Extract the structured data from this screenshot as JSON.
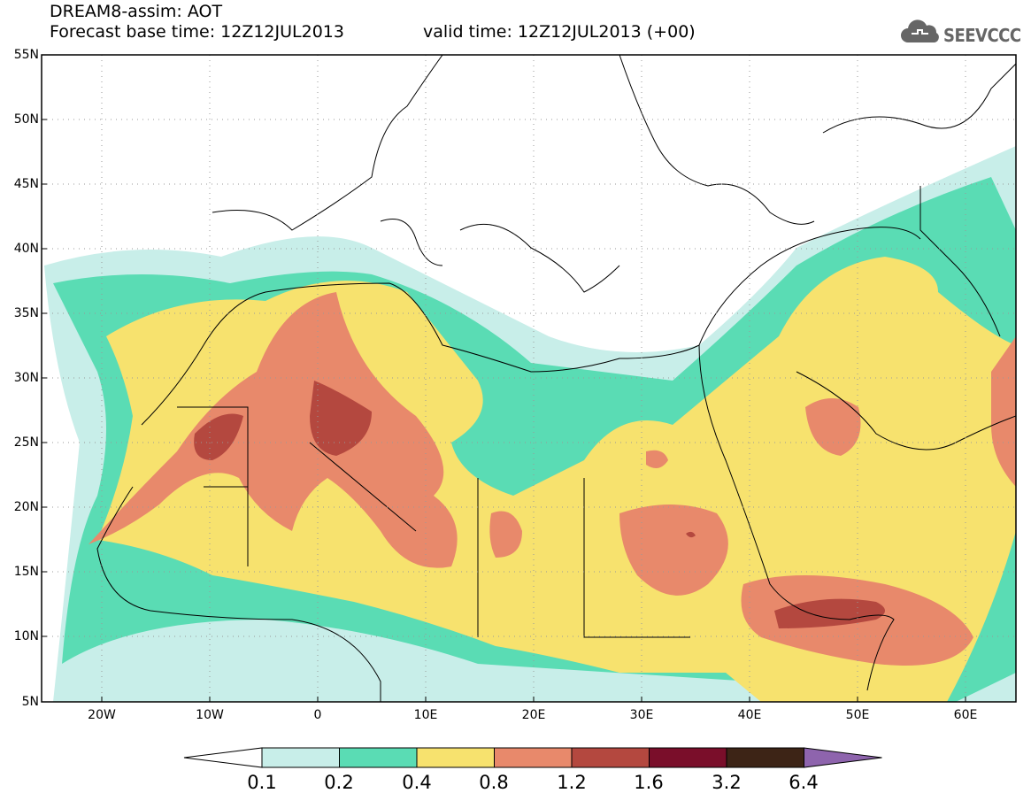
{
  "header": {
    "line1": "DREAM8-assim: AOT",
    "line2": "Forecast base time: 12Z12JUL2013",
    "valid": "valid time: 12Z12JUL2013 (+00)",
    "logo_text": "SEEVCCC"
  },
  "map": {
    "lat_labels": [
      "55N",
      "50N",
      "45N",
      "40N",
      "35N",
      "30N",
      "25N",
      "20N",
      "15N",
      "10N",
      "5N"
    ],
    "lon_labels": [
      "20W",
      "10W",
      "0",
      "10E",
      "20E",
      "30E",
      "40E",
      "50E",
      "60E"
    ],
    "lon_range": [
      -25,
      65
    ],
    "lat_range": [
      5,
      55
    ]
  },
  "legend": {
    "labels": [
      "0.1",
      "0.2",
      "0.4",
      "0.8",
      "1.2",
      "1.6",
      "3.2",
      "6.4"
    ],
    "colors": [
      "#ffffff",
      "#c8eee9",
      "#5adcb4",
      "#f7e26e",
      "#e8896b",
      "#b4483f",
      "#7a0e2a",
      "#3d2416",
      "#8e64ad"
    ]
  }
}
